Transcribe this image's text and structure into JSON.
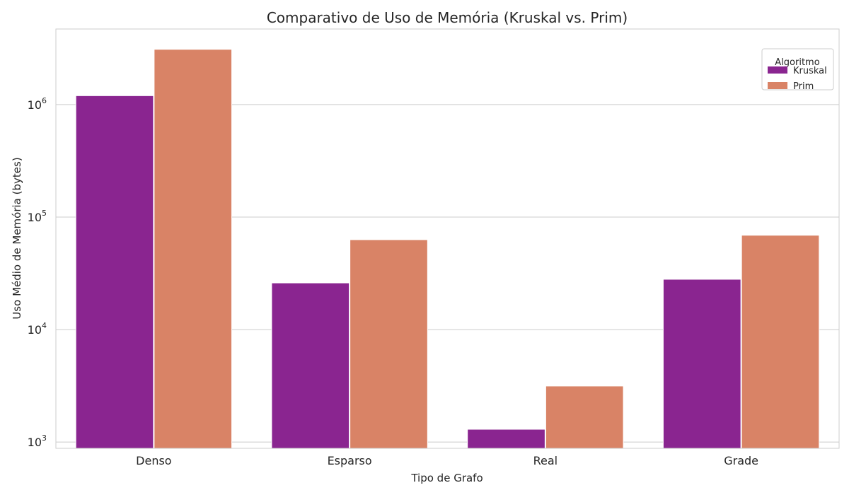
{
  "chart_data": {
    "type": "bar",
    "title": "Comparativo de Uso de Memória (Kruskal vs. Prim)",
    "xlabel": "Tipo de Grafo",
    "ylabel": "Uso Médio de Memória (bytes)",
    "yscale": "log",
    "ylim": [
      880,
      4700000
    ],
    "yticks": [
      {
        "value": 1000,
        "base": "10",
        "exp": "3"
      },
      {
        "value": 10000,
        "base": "10",
        "exp": "4"
      },
      {
        "value": 100000,
        "base": "10",
        "exp": "5"
      },
      {
        "value": 1000000,
        "base": "10",
        "exp": "6"
      }
    ],
    "categories": [
      "Denso",
      "Esparso",
      "Real",
      "Grade"
    ],
    "series": [
      {
        "name": "Kruskal",
        "color": "#8a2590",
        "values": [
          1200000,
          26000,
          1300,
          28000
        ]
      },
      {
        "name": "Prim",
        "color": "#d98366",
        "values": [
          3100000,
          63000,
          3150,
          69000
        ]
      }
    ],
    "grid": true,
    "legend": {
      "title": "Algoritmo",
      "placement": "top-right"
    }
  }
}
